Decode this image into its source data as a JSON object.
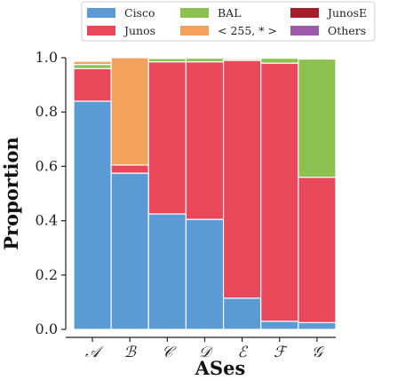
{
  "chart_data": {
    "type": "bar",
    "stacked": true,
    "categories": [
      "𝒜",
      "ℬ",
      "𝒞",
      "𝒟",
      "ℰ",
      "ℱ",
      "𝒢"
    ],
    "xlabel": "ASes",
    "ylabel": "Proportion",
    "ylim": [
      0,
      1.0
    ],
    "yticks": [
      "0.0",
      "0.2",
      "0.4",
      "0.6",
      "0.8",
      "1.0"
    ],
    "ytick_values": [
      0,
      0.2,
      0.4,
      0.6,
      0.8,
      1.0
    ],
    "grid": false,
    "legend_position": "top",
    "series": [
      {
        "name": "Cisco",
        "color": "#5b9bd5",
        "values": [
          0.84,
          0.575,
          0.425,
          0.405,
          0.115,
          0.03,
          0.025
        ]
      },
      {
        "name": "Junos",
        "color": "#e8485a",
        "values": [
          0.12,
          0.03,
          0.56,
          0.58,
          0.875,
          0.95,
          0.535
        ]
      },
      {
        "name": "BAL",
        "color": "#8cc152",
        "values": [
          0.015,
          0.0,
          0.012,
          0.013,
          0.005,
          0.018,
          0.435
        ]
      },
      {
        "name": "< 255, * >",
        "color": "#f4a25b",
        "values": [
          0.012,
          0.395,
          0.0,
          0.0,
          0.0,
          0.0,
          0.0
        ]
      },
      {
        "name": "JunosE",
        "color": "#a61e2a",
        "values": [
          0.004,
          0.0,
          0.0,
          0.0,
          0.0,
          0.0,
          0.0
        ]
      },
      {
        "name": "Others",
        "color": "#9c5ba8",
        "values": [
          0.004,
          0.0,
          0.0,
          0.0,
          0.0,
          0.0,
          0.0
        ]
      }
    ]
  }
}
